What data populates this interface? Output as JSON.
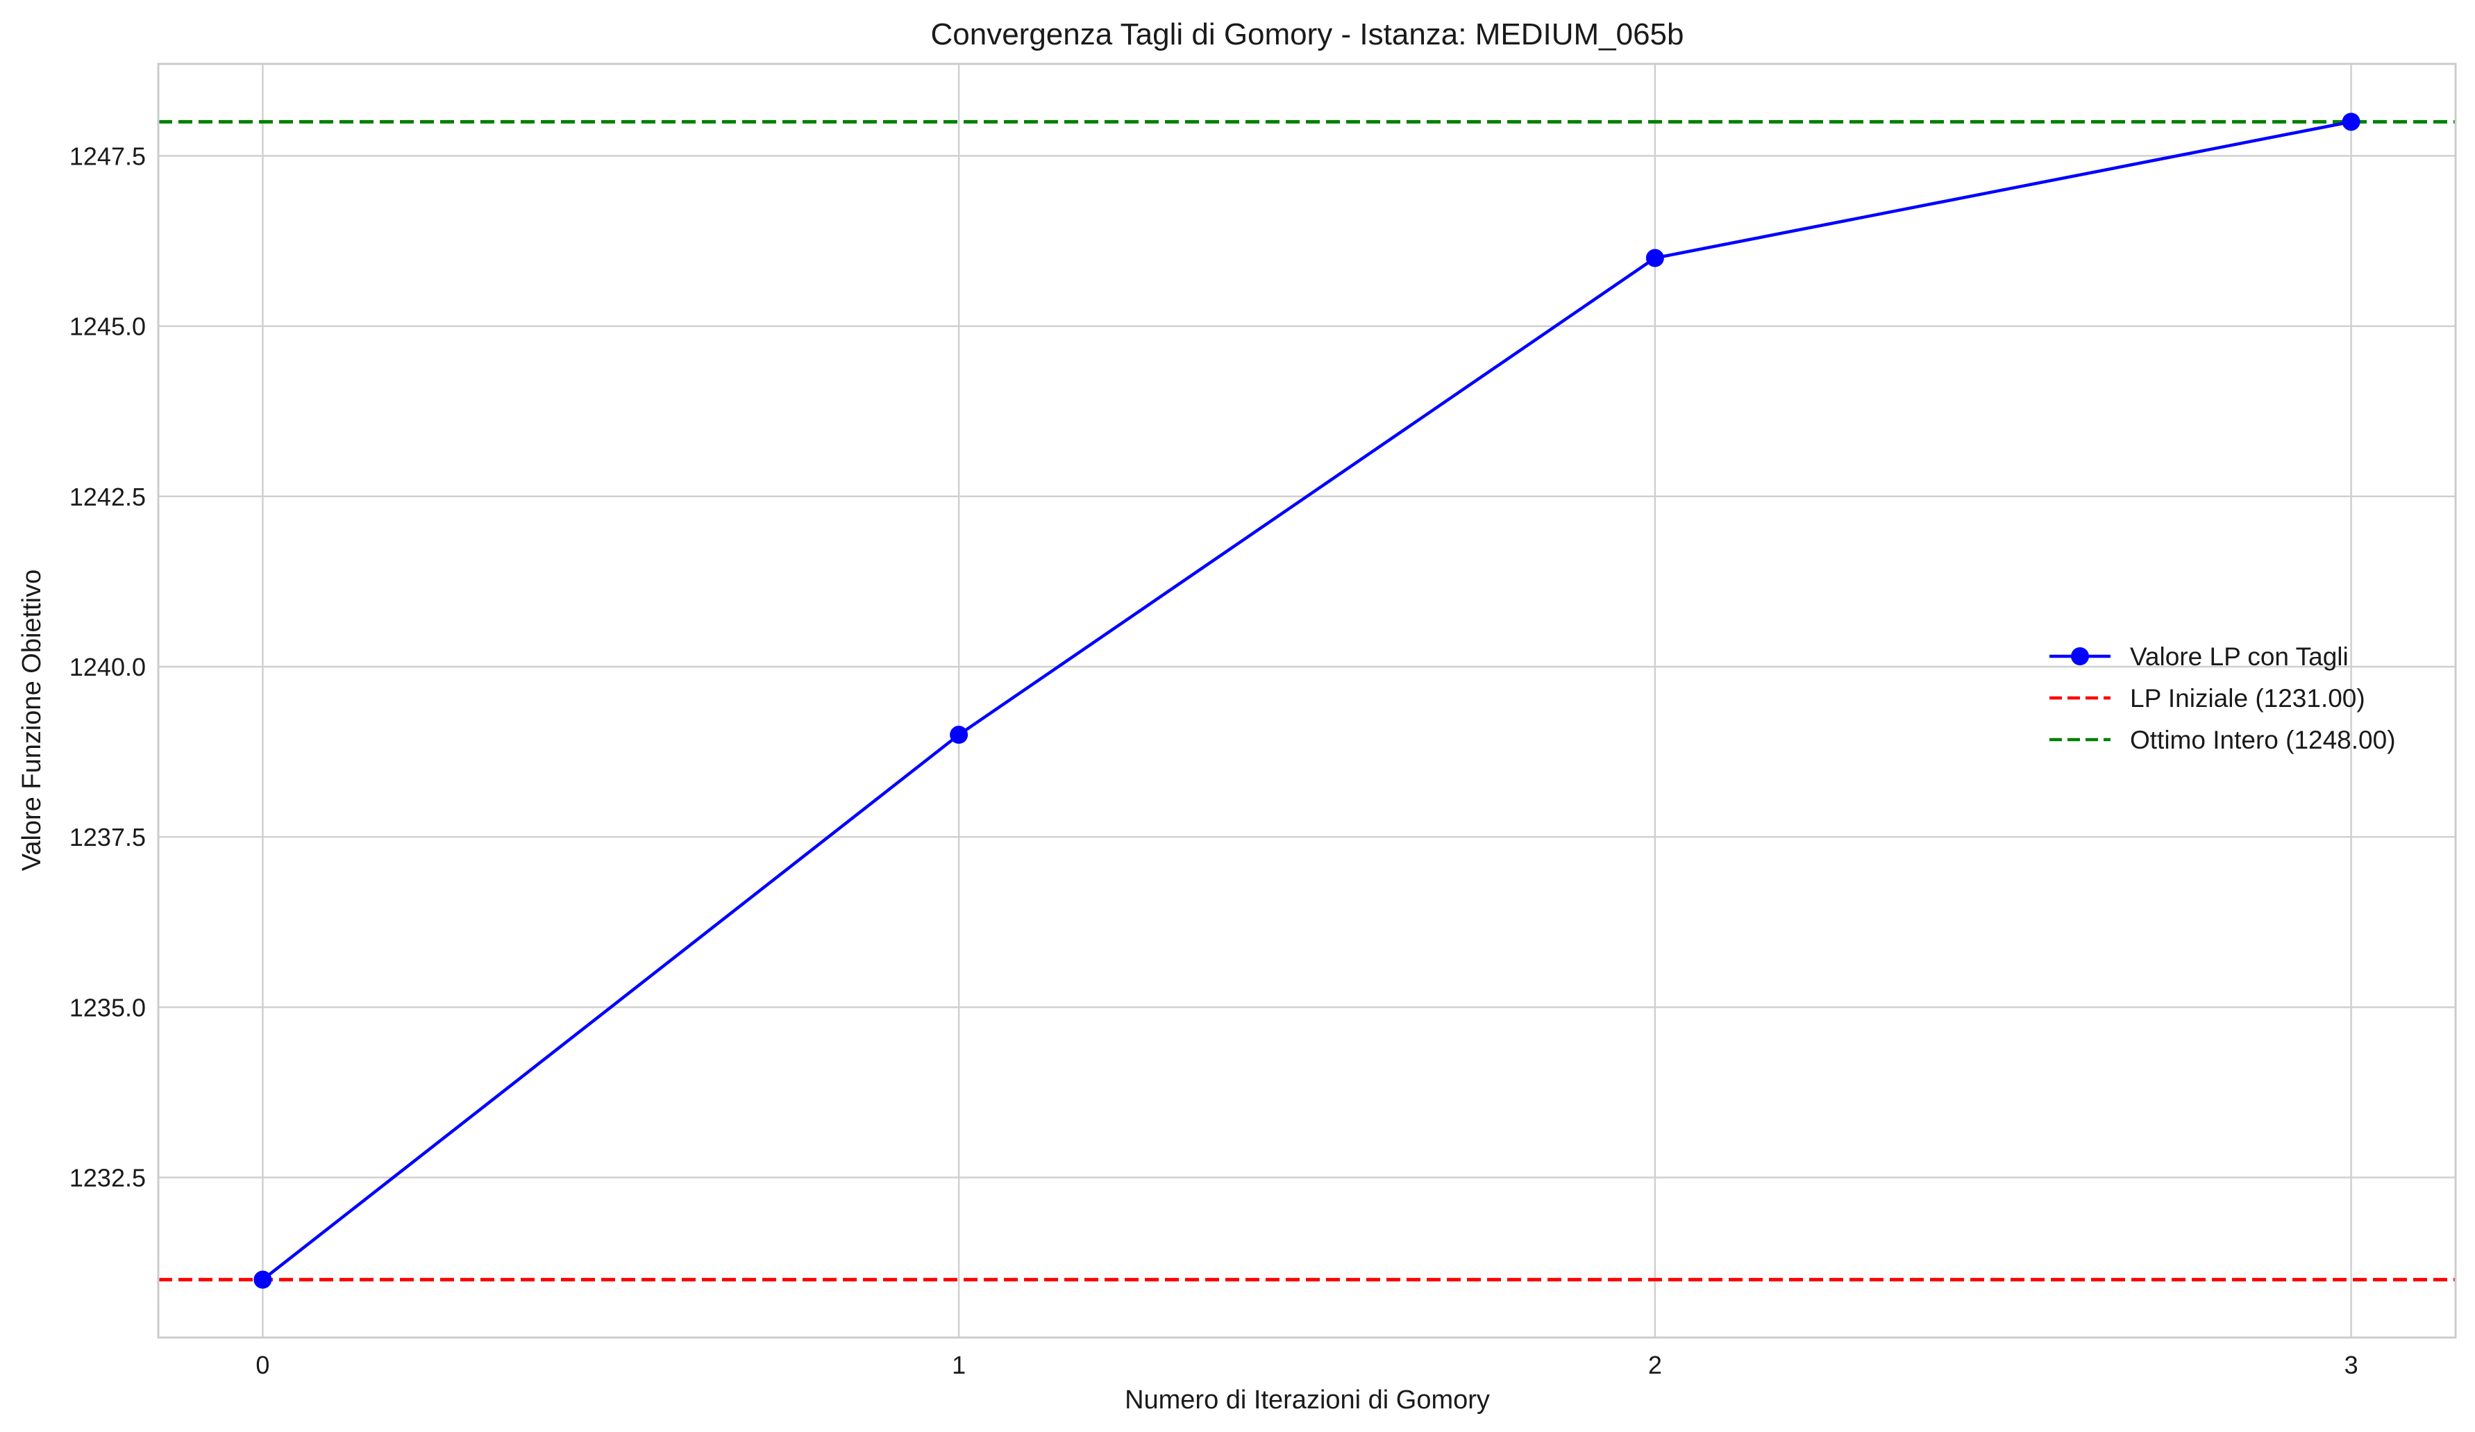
{
  "chart_data": {
    "type": "line",
    "title": "Convergenza Tagli di Gomory - Istanza: MEDIUM_065b",
    "xlabel": "Numero di Iterazioni di Gomory",
    "ylabel": "Valore Funzione Obiettivo",
    "x": [
      0,
      1,
      2,
      3
    ],
    "xticks": [
      "0",
      "1",
      "2",
      "3"
    ],
    "yticks": [
      "1232.5",
      "1235.0",
      "1237.5",
      "1240.0",
      "1242.5",
      "1245.0",
      "1247.5"
    ],
    "xlim": [
      -0.15,
      3.15
    ],
    "ylim": [
      1230.15,
      1248.85
    ],
    "grid": true,
    "series": [
      {
        "name": "Valore LP con Tagli",
        "style": "line-marker",
        "color": "#0000ff",
        "values": [
          1231,
          1239,
          1246,
          1248
        ]
      }
    ],
    "reference_lines": [
      {
        "name": "LP Iniziale (1231.00)",
        "value": 1231.0,
        "color": "#ff0000",
        "style": "dashed"
      },
      {
        "name": "Ottimo Intero (1248.00)",
        "value": 1248.0,
        "color": "#008000",
        "style": "dashed"
      }
    ],
    "legend_position": "center-right"
  }
}
